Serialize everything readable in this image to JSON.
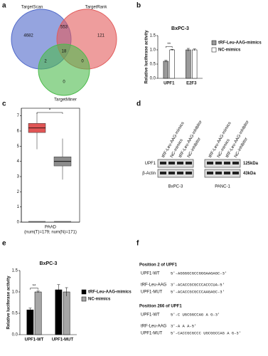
{
  "panel_labels": [
    "a",
    "b",
    "c",
    "d",
    "e",
    "f"
  ],
  "chart_data": [
    {
      "type": "venn",
      "sets": [
        {
          "name": "TargetScan",
          "color": "#4f68c9"
        },
        {
          "name": "TargetRank",
          "color": "#e25b5b"
        },
        {
          "name": "TargetMiner",
          "color": "#4cbb4c"
        }
      ],
      "regions": [
        {
          "sets": [
            "TargetScan"
          ],
          "value": 4682
        },
        {
          "sets": [
            "TargetRank"
          ],
          "value": 121
        },
        {
          "sets": [
            "TargetMiner"
          ],
          "value": 0
        },
        {
          "sets": [
            "TargetScan",
            "TargetRank"
          ],
          "value": 553
        },
        {
          "sets": [
            "TargetScan",
            "TargetMiner"
          ],
          "value": 2
        },
        {
          "sets": [
            "TargetRank",
            "TargetMiner"
          ],
          "value": 0
        },
        {
          "sets": [
            "TargetScan",
            "TargetRank",
            "TargetMiner"
          ],
          "value": 18
        }
      ]
    },
    {
      "type": "bar",
      "title": "BxPC-3",
      "y_label": "Relative luciferase activity",
      "categories": [
        "UPF1",
        "E2F3"
      ],
      "series": [
        {
          "name": "tRF-Leu-AAG-mimics",
          "color": "#9a9a9a",
          "values": [
            0.6,
            1.0
          ],
          "errors": [
            0.03,
            0.05
          ]
        },
        {
          "name": "NC-mimics",
          "color": "#ffffff",
          "values": [
            1.0,
            1.0
          ],
          "errors": [
            0.02,
            0.03
          ]
        }
      ],
      "ylim": [
        0,
        1.5
      ],
      "yticks": [
        {
          "value": 0,
          "label": "0.0"
        },
        {
          "value": 0.5,
          "label": "0.5"
        },
        {
          "value": 1,
          "label": "1.0"
        },
        {
          "value": 1.5,
          "label": "1.5"
        }
      ],
      "annotation": "**"
    },
    {
      "type": "box",
      "x_label": "PAAD",
      "subtitle": "(num(T)=179; num(N)=171)",
      "boxes": [
        {
          "color": "#e05555",
          "min": 4.8,
          "q1": 5.9,
          "median": 6.2,
          "q3": 6.5,
          "max": 7.2
        },
        {
          "color": "#8c8c8c",
          "min": 2.8,
          "q1": 3.7,
          "median": 4.0,
          "q3": 4.3,
          "max": 5.5
        }
      ],
      "ylim": [
        0,
        7.5
      ],
      "yticks": [
        0,
        1,
        2,
        3,
        4,
        5,
        6,
        7
      ],
      "annotation": "*"
    },
    {
      "type": "bar",
      "title": "BxPC-3",
      "y_label": "Relative luciferase activity",
      "categories": [
        "UPF1-WT",
        "UPF1-MUT"
      ],
      "series": [
        {
          "name": "tRF-Leu-AAG-mimics",
          "color": "#000000",
          "values": [
            0.58,
            1.05
          ],
          "errors": [
            0.04,
            0.12
          ]
        },
        {
          "name": "NC-mimics",
          "color": "#a6a6a6",
          "values": [
            1.0,
            1.0
          ],
          "errors": [
            0.02,
            0.1
          ]
        }
      ],
      "ylim": [
        0,
        1.5
      ],
      "yticks": [
        {
          "value": 0,
          "label": "0.0"
        },
        {
          "value": 0.5,
          "label": "0.5"
        },
        {
          "value": 1,
          "label": "1.0"
        },
        {
          "value": 1.5,
          "label": "1.5"
        }
      ],
      "annotation": "**"
    }
  ],
  "blot": {
    "lanes": [
      "tRF-Leu-AAG-mimics",
      "NC-mimics",
      "tRF-Leu-AAG-inhibitor",
      "NC-inhibitor"
    ],
    "cell_lines": [
      "BxPC-3",
      "PANC-1"
    ],
    "rows": [
      "UPF1",
      "β-Actin"
    ],
    "sizes": [
      "125kDa",
      "43kDa"
    ]
  },
  "sequences": [
    {
      "title": "Position 2 of UPF1",
      "lines": [
        [
          "UPF1-WT",
          "5'-AGGGGCGCCGGGAAGAGC-3'"
        ],
        [
          "tRF-Leu-AAG",
          "3'-ACACCGCGCCCACCCUA-5'"
        ],
        [
          "UPF1-MUT",
          "5'-ACACCGCGCCCAAGAGC-3'"
        ]
      ]
    },
    {
      "title": "Position 266 of UPF1",
      "lines": [
        [
          "UPF1-WT",
          "5'-C   UGCGGCCAG   A   G-3'"
        ],
        [
          "tRF-Leu-AAG",
          "3'-A   A   A-5'"
        ],
        [
          "UPF1-MUT",
          "5'-CACCGCGCCC UGCGGCCAG A G-3'"
        ]
      ]
    }
  ]
}
